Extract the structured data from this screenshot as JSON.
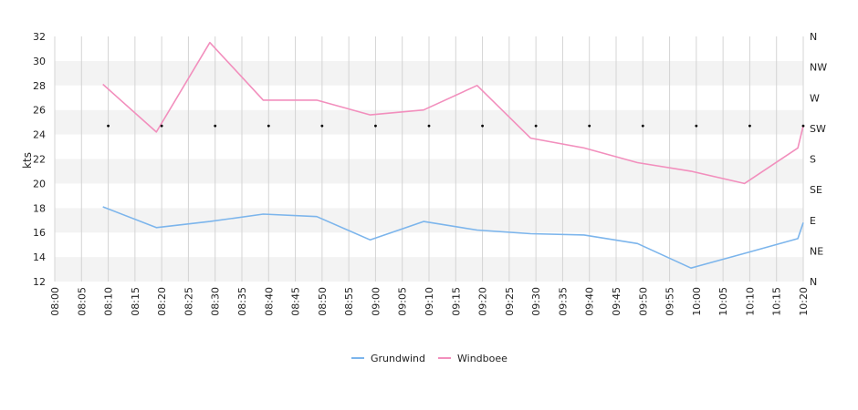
{
  "chart_data": {
    "type": "line",
    "ylabel": "kts",
    "ylim": [
      12,
      32
    ],
    "y_ticks": [
      12,
      14,
      16,
      18,
      20,
      22,
      24,
      26,
      28,
      30,
      32
    ],
    "x_tick_labels": [
      "08:00",
      "08:05",
      "08:10",
      "08:15",
      "08:20",
      "08:25",
      "08:30",
      "08:35",
      "08:40",
      "08:45",
      "08:50",
      "08:55",
      "09:00",
      "09:05",
      "09:10",
      "09:15",
      "09:20",
      "09:25",
      "09:30",
      "09:35",
      "09:40",
      "09:45",
      "09:50",
      "09:55",
      "10:00",
      "10:05",
      "10:10",
      "10:15",
      "10:20"
    ],
    "x_range": [
      "08:00",
      "10:20"
    ],
    "right_axis_labels": [
      "N",
      "NE",
      "E",
      "SE",
      "S",
      "SW",
      "W",
      "NW",
      "N"
    ],
    "grid": true,
    "legend_position": "bottom",
    "series": [
      {
        "name": "Grundwind",
        "color": "#7cb5ec",
        "points": [
          [
            "08:09",
            18.1
          ],
          [
            "08:19",
            16.4
          ],
          [
            "08:29",
            16.9
          ],
          [
            "08:39",
            17.5
          ],
          [
            "08:49",
            17.3
          ],
          [
            "08:59",
            15.4
          ],
          [
            "09:09",
            16.9
          ],
          [
            "09:19",
            16.2
          ],
          [
            "09:29",
            15.9
          ],
          [
            "09:39",
            15.8
          ],
          [
            "09:49",
            15.1
          ],
          [
            "09:59",
            13.1
          ],
          [
            "10:09",
            14.3
          ],
          [
            "10:19",
            15.5
          ],
          [
            "10:20",
            16.8
          ]
        ]
      },
      {
        "name": "Windboee",
        "color": "#f28fbd",
        "points": [
          [
            "08:09",
            28.1
          ],
          [
            "08:19",
            24.2
          ],
          [
            "08:29",
            31.5
          ],
          [
            "08:39",
            26.8
          ],
          [
            "08:49",
            26.8
          ],
          [
            "08:59",
            25.6
          ],
          [
            "09:09",
            26.0
          ],
          [
            "09:19",
            28.0
          ],
          [
            "09:29",
            23.7
          ],
          [
            "09:39",
            22.9
          ],
          [
            "09:49",
            21.7
          ],
          [
            "09:59",
            21.0
          ],
          [
            "10:09",
            20.0
          ],
          [
            "10:19",
            22.9
          ],
          [
            "10:20",
            24.7
          ]
        ]
      }
    ],
    "direction_markers": [
      "08:10",
      "08:20",
      "08:30",
      "08:40",
      "08:50",
      "09:00",
      "09:10",
      "09:20",
      "09:30",
      "09:40",
      "09:50",
      "10:00",
      "10:10",
      "10:20"
    ],
    "direction_marker_level": 24.7
  }
}
